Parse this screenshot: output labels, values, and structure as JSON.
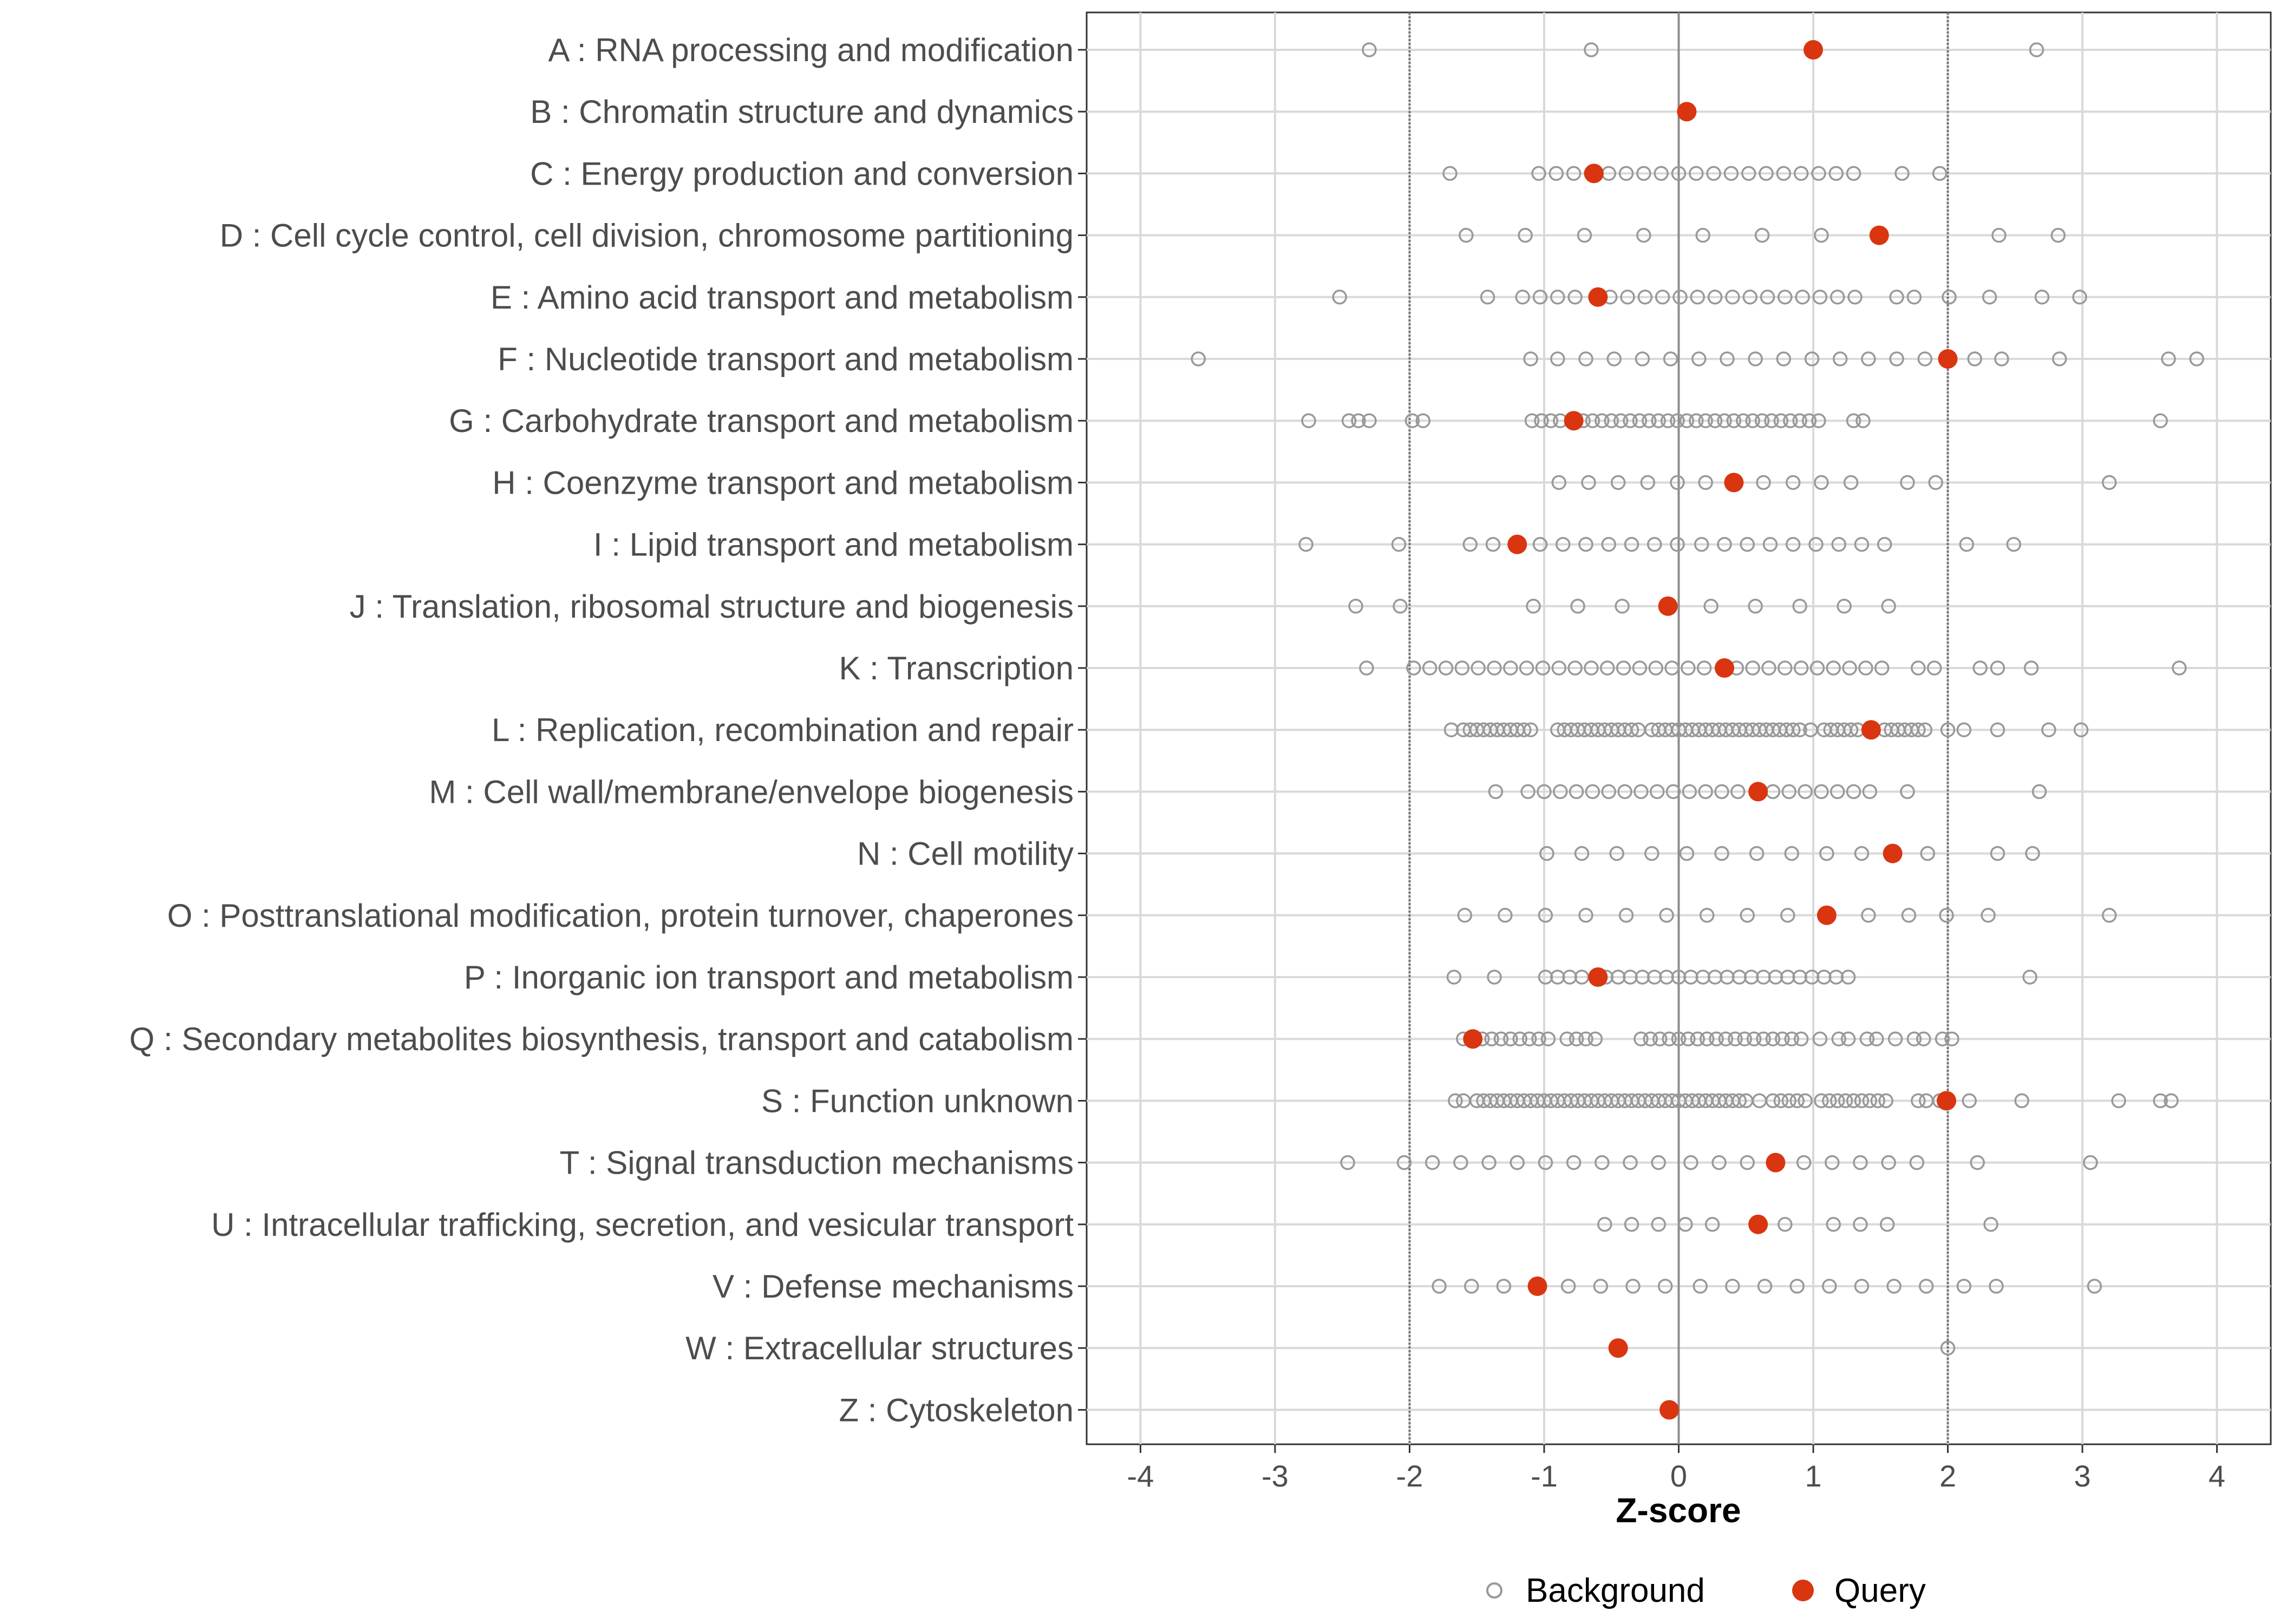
{
  "chart_data": {
    "type": "scatter",
    "xlabel": "Z-score",
    "xlim": [
      -4.4,
      4.4
    ],
    "xticks": [
      -4,
      -3,
      -2,
      -1,
      0,
      1,
      2,
      3,
      4
    ],
    "vlines": [
      -2,
      2
    ],
    "grid": true,
    "legend_position": "bottom",
    "legend": [
      {
        "name": "Background",
        "style": "open-circle"
      },
      {
        "name": "Query",
        "style": "filled-circle"
      }
    ],
    "colors": {
      "background": "#999999",
      "query": "#d93510",
      "grid": "#d9d9d9",
      "zero_line": "#8c8c8c",
      "vline": "#737373"
    },
    "categories": [
      "A : RNA processing and modification",
      "B : Chromatin structure and dynamics",
      "C : Energy production and conversion",
      "D : Cell cycle control, cell division, chromosome partitioning",
      "E : Amino acid transport and metabolism",
      "F : Nucleotide transport and metabolism",
      "G : Carbohydrate transport and metabolism",
      "H : Coenzyme transport and metabolism",
      "I : Lipid transport and metabolism",
      "J : Translation, ribosomal structure and biogenesis",
      "K : Transcription",
      "L : Replication, recombination and repair",
      "M : Cell wall/membrane/envelope biogenesis",
      "N : Cell motility",
      "O : Posttranslational modification, protein turnover, chaperones",
      "P : Inorganic ion transport and metabolism",
      "Q : Secondary metabolites biosynthesis, transport and catabolism",
      "S : Function unknown",
      "T : Signal transduction mechanisms",
      "U : Intracellular trafficking, secretion, and vesicular transport",
      "V : Defense mechanisms",
      "W : Extracellular structures",
      "Z : Cytoskeleton"
    ],
    "query": [
      1.0,
      0.06,
      -0.63,
      1.49,
      -0.6,
      2.0,
      -0.78,
      0.41,
      -1.2,
      -0.08,
      0.34,
      1.43,
      0.59,
      1.59,
      1.1,
      -0.6,
      -1.53,
      1.99,
      0.72,
      0.59,
      -1.05,
      -0.45,
      -0.07
    ],
    "background": [
      [
        -2.3,
        -0.65,
        2.66
      ],
      [],
      [
        -1.7,
        -1.04,
        -0.91,
        -0.78,
        -0.65,
        -0.52,
        -0.39,
        -0.26,
        -0.13,
        0.0,
        0.13,
        0.26,
        0.39,
        0.52,
        0.65,
        0.78,
        0.91,
        1.04,
        1.17,
        1.3,
        1.66,
        1.94
      ],
      [
        -1.58,
        -1.14,
        -0.7,
        -0.26,
        0.18,
        0.62,
        1.06,
        2.38,
        2.82
      ],
      [
        -2.52,
        -1.42,
        -1.16,
        -1.03,
        -0.9,
        -0.77,
        -0.51,
        -0.38,
        -0.25,
        -0.12,
        0.01,
        0.14,
        0.27,
        0.4,
        0.53,
        0.66,
        0.79,
        0.92,
        1.05,
        1.18,
        1.31,
        1.62,
        1.75,
        2.01,
        2.31,
        2.7,
        2.98
      ],
      [
        -3.57,
        -1.1,
        -0.9,
        -0.69,
        -0.48,
        -0.27,
        -0.06,
        0.15,
        0.36,
        0.57,
        0.78,
        0.99,
        1.2,
        1.41,
        1.62,
        1.83,
        2.2,
        2.4,
        2.83,
        3.64,
        3.85
      ],
      [
        -2.75,
        -2.45,
        -2.38,
        -2.3,
        -1.98,
        -1.9,
        -1.09,
        -1.02,
        -0.95,
        -0.88,
        -0.71,
        -0.64,
        -0.57,
        -0.5,
        -0.43,
        -0.36,
        -0.29,
        -0.22,
        -0.15,
        -0.08,
        -0.01,
        0.06,
        0.13,
        0.2,
        0.27,
        0.34,
        0.41,
        0.48,
        0.55,
        0.62,
        0.69,
        0.76,
        0.83,
        0.9,
        0.97,
        1.04,
        1.3,
        1.37,
        3.58
      ],
      [
        -0.89,
        -0.67,
        -0.45,
        -0.23,
        -0.01,
        0.2,
        0.63,
        0.85,
        1.06,
        1.28,
        1.7,
        1.91,
        3.2
      ],
      [
        -2.77,
        -2.08,
        -1.55,
        -1.38,
        -1.03,
        -0.86,
        -0.69,
        -0.52,
        -0.35,
        -0.18,
        -0.01,
        0.17,
        0.34,
        0.51,
        0.68,
        0.85,
        1.02,
        1.19,
        1.36,
        1.53,
        2.14,
        2.49
      ],
      [
        -2.4,
        -2.07,
        -1.08,
        -0.75,
        -0.42,
        0.24,
        0.57,
        0.9,
        1.23,
        1.56
      ],
      [
        -2.32,
        -1.97,
        -1.85,
        -1.73,
        -1.61,
        -1.49,
        -1.37,
        -1.25,
        -1.13,
        -1.01,
        -0.89,
        -0.77,
        -0.65,
        -0.53,
        -0.41,
        -0.29,
        -0.17,
        -0.05,
        0.07,
        0.19,
        0.43,
        0.55,
        0.67,
        0.79,
        0.91,
        1.03,
        1.15,
        1.27,
        1.39,
        1.51,
        1.78,
        1.9,
        2.24,
        2.37,
        2.62,
        3.72
      ],
      [
        -1.69,
        -1.6,
        -1.55,
        -1.5,
        -1.45,
        -1.4,
        -1.35,
        -1.3,
        -1.25,
        -1.2,
        -1.15,
        -1.1,
        -0.9,
        -0.85,
        -0.8,
        -0.75,
        -0.7,
        -0.65,
        -0.6,
        -0.55,
        -0.5,
        -0.45,
        -0.4,
        -0.35,
        -0.3,
        -0.2,
        -0.15,
        -0.1,
        -0.05,
        0.0,
        0.05,
        0.1,
        0.15,
        0.2,
        0.25,
        0.3,
        0.35,
        0.4,
        0.45,
        0.5,
        0.55,
        0.6,
        0.65,
        0.7,
        0.75,
        0.8,
        0.85,
        0.9,
        0.98,
        1.08,
        1.13,
        1.18,
        1.23,
        1.28,
        1.33,
        1.53,
        1.58,
        1.63,
        1.68,
        1.73,
        1.78,
        1.83,
        2.0,
        2.12,
        2.37,
        2.75,
        2.99
      ],
      [
        -1.36,
        -1.12,
        -1.0,
        -0.88,
        -0.76,
        -0.64,
        -0.52,
        -0.4,
        -0.28,
        -0.16,
        -0.04,
        0.08,
        0.2,
        0.32,
        0.44,
        0.7,
        0.82,
        0.94,
        1.06,
        1.18,
        1.3,
        1.42,
        1.7,
        2.68
      ],
      [
        -0.98,
        -0.72,
        -0.46,
        -0.2,
        0.06,
        0.32,
        0.58,
        0.84,
        1.1,
        1.36,
        1.85,
        2.37,
        2.63
      ],
      [
        -1.59,
        -1.29,
        -0.99,
        -0.69,
        -0.39,
        -0.09,
        0.21,
        0.51,
        0.81,
        1.41,
        1.71,
        1.99,
        2.3,
        3.2
      ],
      [
        -1.67,
        -1.37,
        -0.99,
        -0.9,
        -0.81,
        -0.72,
        -0.54,
        -0.45,
        -0.36,
        -0.27,
        -0.18,
        -0.09,
        0.0,
        0.09,
        0.18,
        0.27,
        0.36,
        0.45,
        0.54,
        0.63,
        0.72,
        0.81,
        0.9,
        0.99,
        1.08,
        1.17,
        1.26,
        2.61
      ],
      [
        -1.6,
        -1.46,
        -1.39,
        -1.32,
        -1.25,
        -1.18,
        -1.11,
        -1.04,
        -0.97,
        -0.83,
        -0.76,
        -0.69,
        -0.62,
        -0.28,
        -0.21,
        -0.14,
        -0.07,
        0.0,
        0.07,
        0.14,
        0.21,
        0.28,
        0.35,
        0.42,
        0.49,
        0.56,
        0.63,
        0.7,
        0.77,
        0.84,
        0.91,
        1.05,
        1.19,
        1.26,
        1.4,
        1.47,
        1.61,
        1.75,
        1.82,
        1.96,
        2.03
      ],
      [
        -1.66,
        -1.6,
        -1.5,
        -1.45,
        -1.4,
        -1.35,
        -1.3,
        -1.25,
        -1.2,
        -1.15,
        -1.1,
        -1.05,
        -1.0,
        -0.95,
        -0.9,
        -0.85,
        -0.8,
        -0.75,
        -0.7,
        -0.65,
        -0.6,
        -0.55,
        -0.5,
        -0.45,
        -0.4,
        -0.35,
        -0.3,
        -0.25,
        -0.2,
        -0.15,
        -0.1,
        -0.05,
        0.0,
        0.05,
        0.1,
        0.15,
        0.2,
        0.25,
        0.3,
        0.35,
        0.4,
        0.45,
        0.5,
        0.6,
        0.7,
        0.76,
        0.82,
        0.88,
        0.94,
        1.06,
        1.12,
        1.18,
        1.24,
        1.3,
        1.36,
        1.42,
        1.48,
        1.54,
        1.78,
        1.84,
        1.94,
        2.16,
        2.55,
        3.27,
        3.58,
        3.66
      ],
      [
        -2.46,
        -2.04,
        -1.83,
        -1.62,
        -1.41,
        -1.2,
        -0.99,
        -0.78,
        -0.57,
        -0.36,
        -0.15,
        0.09,
        0.3,
        0.51,
        0.93,
        1.14,
        1.35,
        1.56,
        1.77,
        2.22,
        3.06
      ],
      [
        -0.55,
        -0.35,
        -0.15,
        0.05,
        0.25,
        0.79,
        1.15,
        1.35,
        1.55,
        2.32
      ],
      [
        -1.78,
        -1.54,
        -1.3,
        -0.82,
        -0.58,
        -0.34,
        -0.1,
        0.16,
        0.4,
        0.64,
        0.88,
        1.12,
        1.36,
        1.6,
        1.84,
        2.12,
        2.36,
        3.09
      ],
      [
        2.0
      ],
      []
    ]
  }
}
